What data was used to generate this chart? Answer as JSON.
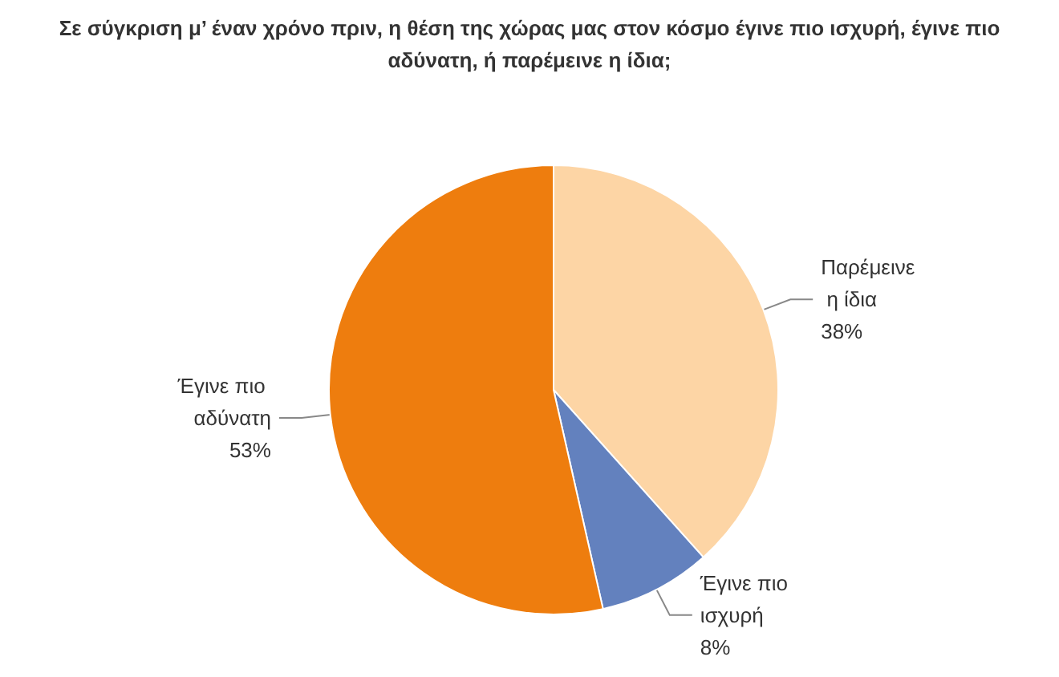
{
  "chart_data": {
    "type": "pie",
    "title": "Σε σύγκριση μ’ έναν χρόνο πριν, η θέση της χώρας μας στον κόσμο έγινε πιο ισχυρή, έγινε πιο αδύνατη, ή παρέμεινε η ίδια;",
    "categories": [
      "Παρέμεινε η ίδια",
      "Έγινε πιο ισχυρή",
      "Έγινε πιο αδύνατη"
    ],
    "values": [
      38,
      8,
      53
    ],
    "colors": [
      "#fdd5a5",
      "#6381be",
      "#ee7d0e"
    ],
    "value_labels": [
      "38%",
      "8%",
      "53%"
    ],
    "legend": false
  }
}
